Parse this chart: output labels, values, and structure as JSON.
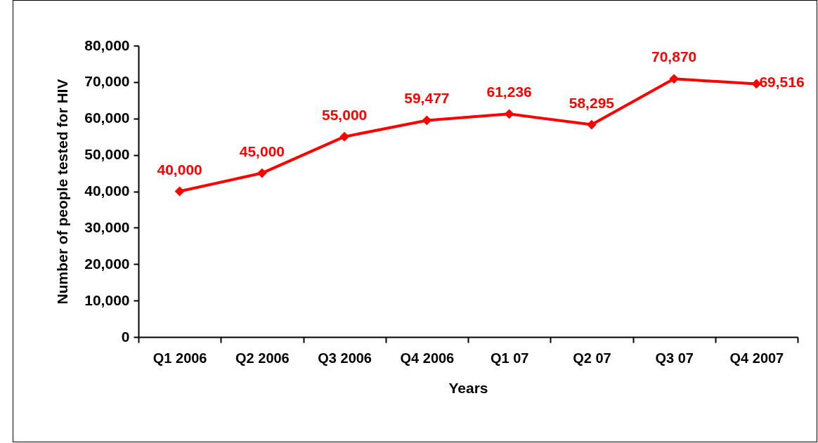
{
  "chart_data": {
    "type": "line",
    "xlabel": "Years",
    "ylabel": "Number of people tested for HIV",
    "categories": [
      "Q1 2006",
      "Q2 2006",
      "Q3 2006",
      "Q4 2006",
      "Q1 07",
      "Q2 07",
      "Q3 07",
      "Q4 2007"
    ],
    "series": [
      {
        "color": "#ff0000",
        "values": [
          40000,
          45000,
          55000,
          59477,
          61236,
          58295,
          70870,
          69516
        ],
        "value_labels": [
          "40,000",
          "45,000",
          "55,000",
          "59,477",
          "61,236",
          "58,295",
          "70,870",
          "69,516"
        ]
      }
    ],
    "ylim": [
      0,
      80000
    ],
    "yticks": [
      {
        "value": 0,
        "label": "0"
      },
      {
        "value": 10000,
        "label": "10,000"
      },
      {
        "value": 20000,
        "label": "20,000"
      },
      {
        "value": 30000,
        "label": "30,000"
      },
      {
        "value": 40000,
        "label": "40,000"
      },
      {
        "value": 50000,
        "label": "50,000"
      },
      {
        "value": 60000,
        "label": "60,000"
      },
      {
        "value": 70000,
        "label": "70,000"
      },
      {
        "value": 80000,
        "label": "80,000"
      }
    ],
    "marker": "diamond",
    "line_style": "solid"
  }
}
